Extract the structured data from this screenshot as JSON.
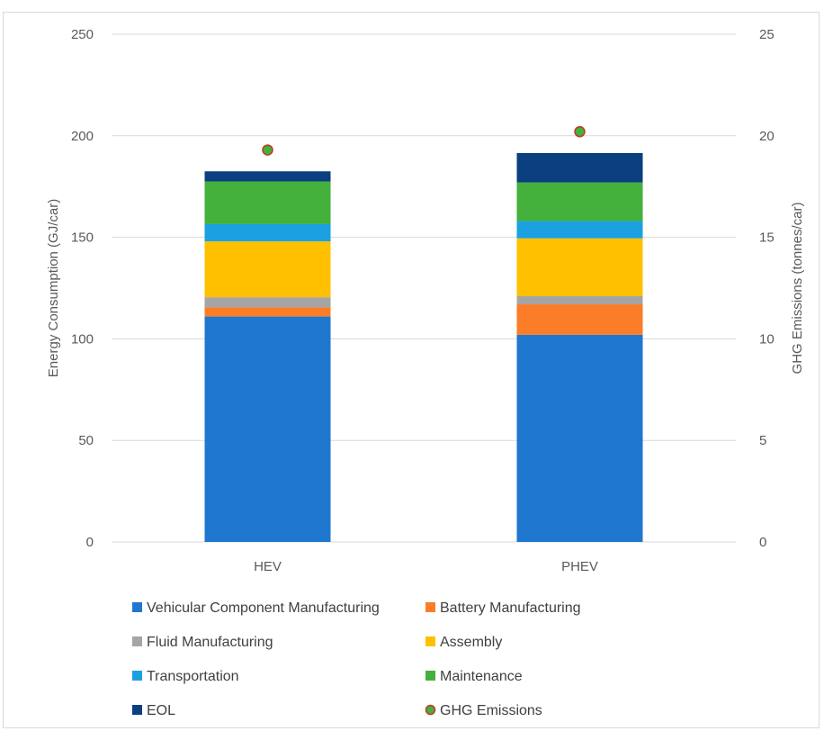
{
  "chart_data": {
    "type": "bar",
    "stacked": true,
    "categories": [
      "HEV",
      "PHEV"
    ],
    "series": [
      {
        "name": "Vehicular Component Manufacturing",
        "color": "#1f77cf",
        "values": [
          111,
          102
        ]
      },
      {
        "name": "Battery Manufacturing",
        "color": "#fb7d28",
        "values": [
          4.5,
          15
        ]
      },
      {
        "name": "Fluid Manufacturing",
        "color": "#a5a5a5",
        "values": [
          5,
          4
        ]
      },
      {
        "name": "Assembly",
        "color": "#ffc000",
        "values": [
          27.5,
          28.5
        ]
      },
      {
        "name": "Transportation",
        "color": "#1ba1e2",
        "values": [
          8.5,
          8.5
        ]
      },
      {
        "name": "Maintenance",
        "color": "#43b13b",
        "values": [
          21,
          19
        ]
      },
      {
        "name": "EOL",
        "color": "#0b3f7f",
        "values": [
          5,
          14.5
        ]
      }
    ],
    "line_series": {
      "name": "GHG Emissions",
      "axis": "right",
      "values": [
        19.3,
        20.2
      ],
      "marker_fill": "#43b13b",
      "marker_edge": "#c0392b"
    },
    "ylabel": "Energy Consumption (GJ/car)",
    "ylabel_right": "GHG Emissions (tonnes/car)",
    "ylim": [
      0,
      250
    ],
    "ylim_right": [
      0,
      25
    ],
    "yticks": [
      0,
      50,
      100,
      150,
      200,
      250
    ],
    "yticks_right": [
      0,
      5,
      10,
      15,
      20,
      25
    ],
    "grid": true,
    "legend_position": "bottom"
  }
}
